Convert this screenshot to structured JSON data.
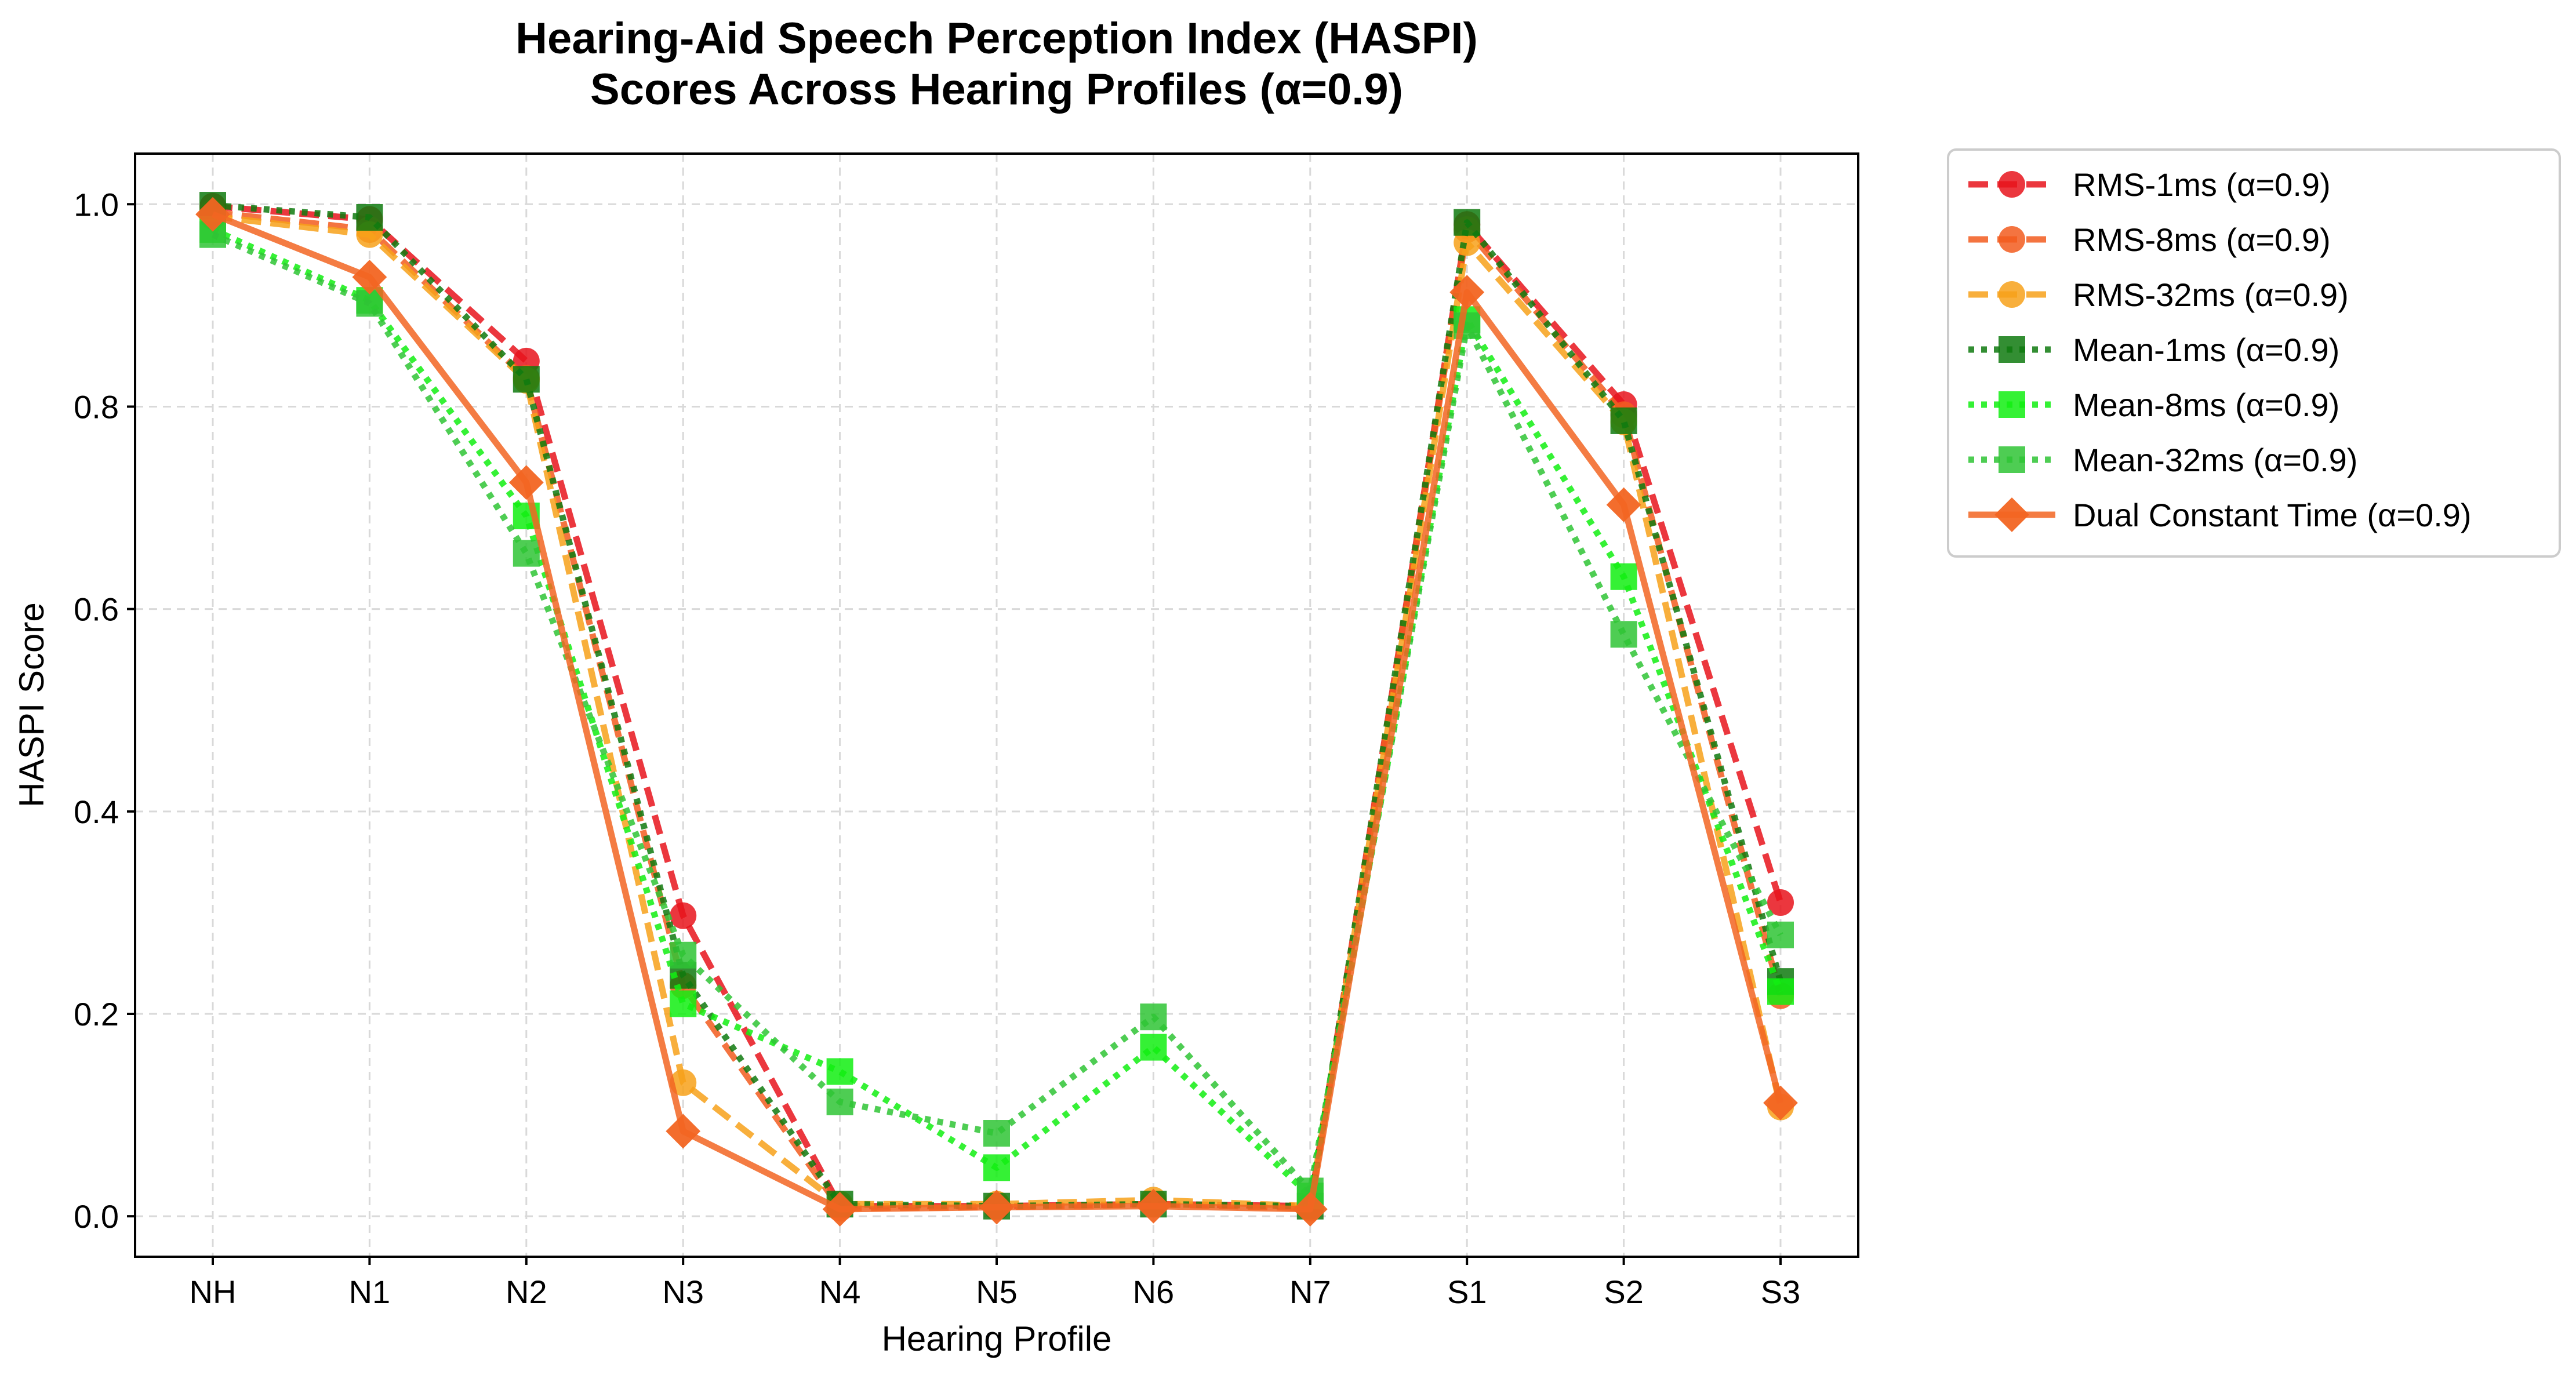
{
  "chart_data": {
    "type": "line",
    "title": [
      "Hearing-Aid Speech Perception Index (HASPI)",
      "Scores Across Hearing Profiles (α=0.9)"
    ],
    "xlabel": "Hearing Profile",
    "ylabel": "HASPI Score",
    "categories": [
      "NH",
      "N1",
      "N2",
      "N3",
      "N4",
      "N5",
      "N6",
      "N7",
      "S1",
      "S2",
      "S3"
    ],
    "ylim": [
      -0.04,
      1.05
    ],
    "yticks": [
      "0.0",
      "0.2",
      "0.4",
      "0.6",
      "0.8",
      "1.0"
    ],
    "grid": true,
    "legend_position": "outside-right",
    "series": [
      {
        "name": "RMS-1ms (α=0.9)",
        "color": "#e8141c",
        "marker": "circle",
        "dash": "dashed",
        "values": [
          0.998,
          0.985,
          0.845,
          0.297,
          0.01,
          0.01,
          0.012,
          0.01,
          0.98,
          0.802,
          0.31
        ]
      },
      {
        "name": "RMS-8ms (α=0.9)",
        "color": "#f25c1f",
        "marker": "circle",
        "dash": "dashed",
        "values": [
          0.992,
          0.975,
          0.828,
          0.228,
          0.008,
          0.009,
          0.012,
          0.008,
          0.975,
          0.792,
          0.218
        ]
      },
      {
        "name": "RMS-32ms (α=0.9)",
        "color": "#f7a11a",
        "marker": "circle",
        "dash": "dashed",
        "values": [
          0.988,
          0.97,
          0.826,
          0.132,
          0.012,
          0.012,
          0.016,
          0.01,
          0.962,
          0.785,
          0.108
        ]
      },
      {
        "name": "Mean-1ms (α=0.9)",
        "color": "#0f7a0f",
        "marker": "square",
        "dash": "dotted",
        "values": [
          0.999,
          0.987,
          0.827,
          0.238,
          0.012,
          0.01,
          0.012,
          0.01,
          0.982,
          0.786,
          0.232
        ]
      },
      {
        "name": "Mean-8ms (α=0.9)",
        "color": "#12ee12",
        "marker": "square",
        "dash": "dotted",
        "values": [
          0.975,
          0.905,
          0.692,
          0.21,
          0.143,
          0.048,
          0.167,
          0.02,
          0.886,
          0.632,
          0.222
        ]
      },
      {
        "name": "Mean-32ms (α=0.9)",
        "color": "#2fc435",
        "marker": "square",
        "dash": "dotted",
        "values": [
          0.97,
          0.902,
          0.655,
          0.258,
          0.113,
          0.082,
          0.197,
          0.025,
          0.88,
          0.575,
          0.278
        ]
      },
      {
        "name": "Dual Constant Time (α=0.9)",
        "color": "#f26522",
        "marker": "diamond",
        "dash": "solid",
        "values": [
          0.99,
          0.928,
          0.725,
          0.084,
          0.007,
          0.009,
          0.01,
          0.007,
          0.913,
          0.703,
          0.112
        ]
      }
    ]
  }
}
